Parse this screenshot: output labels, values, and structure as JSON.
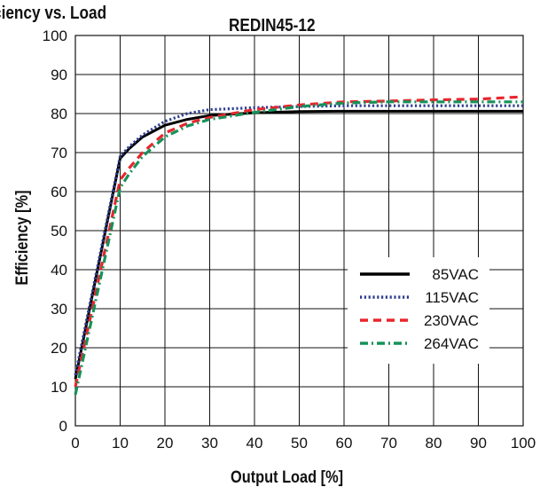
{
  "header": {
    "page_title": "ciency vs. Load",
    "chart_title": "REDIN45-12"
  },
  "chart_data": {
    "type": "line",
    "title": "REDIN45-12",
    "xlabel": "Output Load [%]",
    "ylabel": "Efficiency [%]",
    "xlim": [
      0,
      100
    ],
    "ylim": [
      0,
      100
    ],
    "xticks": [
      0,
      10,
      20,
      30,
      40,
      50,
      60,
      70,
      80,
      90,
      100
    ],
    "yticks": [
      0,
      10,
      20,
      30,
      40,
      50,
      60,
      70,
      80,
      90,
      100
    ],
    "grid": true,
    "legend_position": "right",
    "series": [
      {
        "name": "85VAC",
        "color": "#000000",
        "style": "solid",
        "x": [
          0,
          10,
          12,
          15,
          20,
          25,
          30,
          40,
          50,
          60,
          70,
          80,
          90,
          100
        ],
        "y": [
          12,
          68.5,
          71,
          74,
          77,
          78.5,
          79.5,
          80.2,
          80.5,
          80.6,
          80.6,
          80.6,
          80.6,
          80.6
        ]
      },
      {
        "name": "115VAC",
        "color": "#2e3f8f",
        "style": "dotted",
        "x": [
          0,
          10,
          12,
          15,
          20,
          25,
          30,
          40,
          50,
          60,
          70,
          80,
          90,
          100
        ],
        "y": [
          13,
          69,
          71.5,
          74.5,
          78,
          80,
          81,
          81.5,
          81.8,
          82,
          82,
          82,
          82,
          82
        ]
      },
      {
        "name": "230VAC",
        "color": "#e8262c",
        "style": "dashed",
        "x": [
          0,
          10,
          12,
          15,
          20,
          25,
          30,
          40,
          50,
          60,
          70,
          80,
          90,
          100
        ],
        "y": [
          10,
          63,
          66,
          70,
          75,
          77.5,
          79,
          81,
          82.2,
          83,
          83.2,
          83.5,
          83.7,
          84.3
        ]
      },
      {
        "name": "264VAC",
        "color": "#16925a",
        "style": "dashdot",
        "x": [
          0,
          10,
          12,
          15,
          20,
          25,
          30,
          40,
          50,
          60,
          70,
          80,
          90,
          100
        ],
        "y": [
          8,
          61,
          64.5,
          69,
          74,
          76.8,
          78.5,
          80.3,
          81.8,
          82.7,
          83,
          83,
          83,
          83
        ]
      }
    ]
  }
}
